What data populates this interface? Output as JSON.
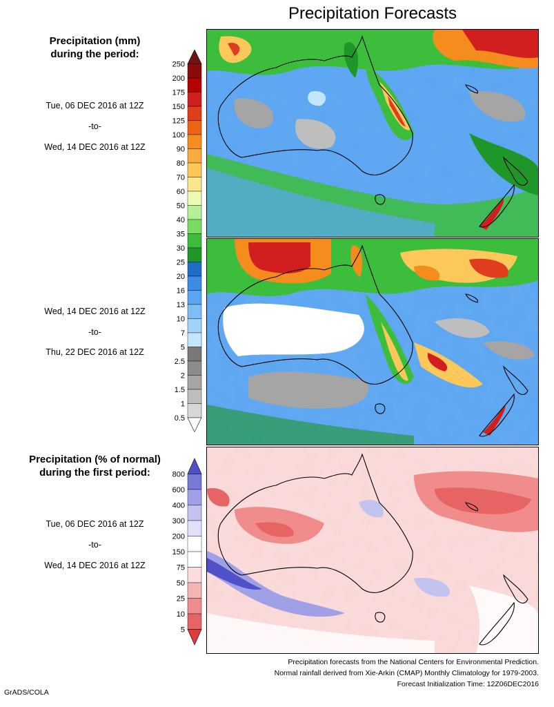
{
  "title": "Precipitation Forecasts",
  "panel1": {
    "heading_line1": "Precipitation (mm)",
    "heading_line2": "during the period:",
    "start": "Tue, 06 DEC 2016 at 12Z",
    "sep": "-to-",
    "end": "Wed, 14 DEC 2016 at 12Z"
  },
  "panel2": {
    "start": "Wed, 14 DEC 2016 at 12Z",
    "sep": "-to-",
    "end": "Thu, 22 DEC 2016 at 12Z"
  },
  "panel3": {
    "heading_line1": "Precipitation (% of normal)",
    "heading_line2": "during the first period:",
    "start": "Tue, 06 DEC 2016 at 12Z",
    "sep": "-to-",
    "end": "Wed, 14 DEC 2016 at 12Z"
  },
  "colorbar_mm": {
    "labels": [
      "250",
      "200",
      "175",
      "150",
      "125",
      "100",
      "90",
      "80",
      "70",
      "60",
      "50",
      "40",
      "35",
      "30",
      "25",
      "20",
      "16",
      "13",
      "10",
      "7",
      "5",
      "2.5",
      "2",
      "1.5",
      "1",
      "0.5"
    ],
    "colors": [
      "#6e1414",
      "#8c0a0a",
      "#b40000",
      "#d21e1e",
      "#e03c1e",
      "#ee6414",
      "#f58c1e",
      "#f8aa3c",
      "#fcc85a",
      "#fce68c",
      "#ecfab4",
      "#b4f096",
      "#78dc64",
      "#3cbe3c",
      "#1e9628",
      "#1e6ec8",
      "#3c8ce6",
      "#5aa5f0",
      "#7dbef5",
      "#a0d2fa",
      "#c3e6fc",
      "#787878",
      "#8c8c8c",
      "#a5a5a5",
      "#bebebe",
      "#d7d7d7",
      "#ffffff"
    ]
  },
  "colorbar_pct": {
    "labels": [
      "800",
      "600",
      "400",
      "300",
      "200",
      "150",
      "75",
      "50",
      "25",
      "10",
      "5"
    ],
    "colors": [
      "#5050c8",
      "#7878d7",
      "#a0a0e6",
      "#c3c3f0",
      "#e1e1fa",
      "#ffffff",
      "#ffffff",
      "#fadcdc",
      "#f5b4b4",
      "#f08c8c",
      "#e66464",
      "#dc3c3c"
    ]
  },
  "footer": {
    "line1": "Precipitation forecasts from the National Centers for Environmental Prediction.",
    "line2": "Normal rainfall derived from Xie-Arkin (CMAP) Monthly Climatology for 1979-2003.",
    "line3": "Forecast Initialization Time: 12Z06DEC2016"
  },
  "credit": "GrADS/COLA"
}
